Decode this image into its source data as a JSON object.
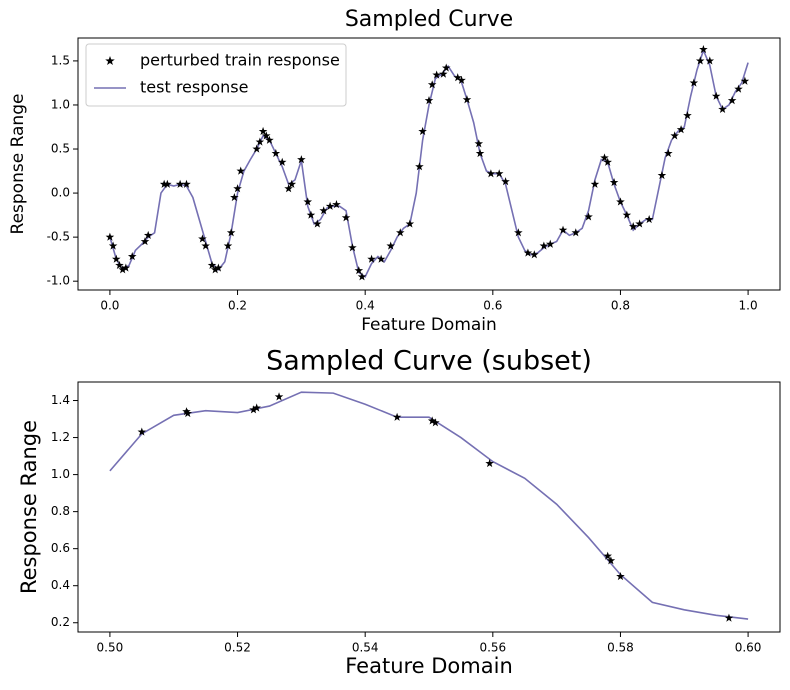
{
  "chart_data": [
    {
      "type": "line",
      "title": "Sampled Curve",
      "xlabel": "Feature Domain",
      "ylabel": "Response Range",
      "xlim": [
        -0.05,
        1.05
      ],
      "ylim": [
        -1.1,
        1.76
      ],
      "xticks": [
        {
          "value": 0,
          "label": "0.0"
        },
        0.2,
        0.4,
        0.6,
        0.8,
        {
          "value": 1,
          "label": "1.0"
        }
      ],
      "yticks": [
        {
          "value": -1,
          "label": "-1.0"
        },
        -0.5,
        {
          "value": 0,
          "label": "0.0"
        },
        0.5,
        {
          "value": 1,
          "label": "1.0"
        },
        1.5
      ],
      "legend": "upper left",
      "series": [
        {
          "name": "perturbed train response",
          "color": "#000000",
          "marker": "star",
          "x": [
            0.0,
            0.005,
            0.01,
            0.015,
            0.02,
            0.025,
            0.035,
            0.055,
            0.06,
            0.085,
            0.09,
            0.11,
            0.12,
            0.145,
            0.15,
            0.16,
            0.165,
            0.17,
            0.185,
            0.19,
            0.195,
            0.2,
            0.205,
            0.23,
            0.235,
            0.24,
            0.245,
            0.25,
            0.26,
            0.27,
            0.28,
            0.285,
            0.3,
            0.31,
            0.315,
            0.325,
            0.335,
            0.345,
            0.355,
            0.37,
            0.38,
            0.39,
            0.395,
            0.41,
            0.425,
            0.44,
            0.455,
            0.47,
            0.485,
            0.49,
            0.5,
            0.505,
            0.512,
            0.5225,
            0.527,
            0.545,
            0.551,
            0.5595,
            0.578,
            0.58,
            0.597,
            0.61,
            0.62,
            0.64,
            0.655,
            0.665,
            0.68,
            0.69,
            0.71,
            0.73,
            0.75,
            0.76,
            0.775,
            0.78,
            0.79,
            0.8,
            0.81,
            0.82,
            0.83,
            0.845,
            0.865,
            0.875,
            0.885,
            0.895,
            0.905,
            0.915,
            0.925,
            0.93,
            0.94,
            0.95,
            0.96,
            0.975,
            0.985,
            0.995
          ],
          "values": [
            -0.5,
            -0.6,
            -0.75,
            -0.82,
            -0.87,
            -0.85,
            -0.72,
            -0.55,
            -0.48,
            0.1,
            0.1,
            0.1,
            0.1,
            -0.52,
            -0.6,
            -0.82,
            -0.87,
            -0.85,
            -0.6,
            -0.45,
            -0.05,
            0.05,
            0.25,
            0.5,
            0.58,
            0.7,
            0.65,
            0.6,
            0.45,
            0.35,
            0.05,
            0.1,
            0.38,
            -0.1,
            -0.25,
            -0.35,
            -0.2,
            -0.15,
            -0.13,
            -0.28,
            -0.62,
            -0.88,
            -0.95,
            -0.75,
            -0.75,
            -0.6,
            -0.45,
            -0.35,
            0.3,
            0.7,
            1.05,
            1.23,
            1.34,
            1.35,
            1.42,
            1.31,
            1.28,
            1.06,
            0.56,
            0.45,
            0.22,
            0.22,
            0.13,
            -0.45,
            -0.68,
            -0.7,
            -0.6,
            -0.58,
            -0.42,
            -0.45,
            -0.27,
            0.1,
            0.4,
            0.35,
            0.12,
            -0.1,
            -0.25,
            -0.38,
            -0.35,
            -0.3,
            0.2,
            0.45,
            0.65,
            0.72,
            0.88,
            1.25,
            1.5,
            1.63,
            1.5,
            1.1,
            0.95,
            1.05,
            1.18,
            1.27
          ]
        },
        {
          "name": "test response",
          "color": "#7570b3",
          "marker": "line",
          "x": [
            0.0,
            0.01,
            0.02,
            0.03,
            0.04,
            0.05,
            0.06,
            0.07,
            0.08,
            0.09,
            0.1,
            0.11,
            0.12,
            0.13,
            0.14,
            0.15,
            0.16,
            0.17,
            0.18,
            0.19,
            0.2,
            0.21,
            0.22,
            0.23,
            0.24,
            0.25,
            0.26,
            0.27,
            0.28,
            0.29,
            0.3,
            0.31,
            0.32,
            0.33,
            0.34,
            0.35,
            0.36,
            0.37,
            0.38,
            0.39,
            0.4,
            0.41,
            0.42,
            0.43,
            0.44,
            0.45,
            0.46,
            0.47,
            0.48,
            0.49,
            0.5,
            0.51,
            0.52,
            0.53,
            0.54,
            0.55,
            0.56,
            0.57,
            0.58,
            0.59,
            0.6,
            0.61,
            0.62,
            0.63,
            0.64,
            0.65,
            0.66,
            0.67,
            0.68,
            0.69,
            0.7,
            0.71,
            0.72,
            0.73,
            0.74,
            0.75,
            0.76,
            0.77,
            0.78,
            0.79,
            0.8,
            0.81,
            0.82,
            0.83,
            0.84,
            0.85,
            0.86,
            0.87,
            0.88,
            0.89,
            0.9,
            0.91,
            0.92,
            0.93,
            0.94,
            0.95,
            0.96,
            0.97,
            0.98,
            0.99,
            1.0
          ],
          "values": [
            -0.5,
            -0.75,
            -0.87,
            -0.82,
            -0.65,
            -0.58,
            -0.5,
            -0.45,
            0.0,
            0.1,
            0.08,
            0.1,
            0.08,
            -0.05,
            -0.3,
            -0.55,
            -0.8,
            -0.87,
            -0.78,
            -0.45,
            0.0,
            0.25,
            0.38,
            0.5,
            0.65,
            0.6,
            0.45,
            0.3,
            0.1,
            0.15,
            0.37,
            -0.15,
            -0.35,
            -0.3,
            -0.17,
            -0.15,
            -0.15,
            -0.2,
            -0.6,
            -0.9,
            -0.95,
            -0.8,
            -0.72,
            -0.78,
            -0.65,
            -0.5,
            -0.4,
            -0.35,
            0.0,
            0.6,
            1.0,
            1.3,
            1.35,
            1.44,
            1.33,
            1.28,
            1.05,
            0.8,
            0.45,
            0.25,
            0.22,
            0.22,
            0.1,
            -0.2,
            -0.5,
            -0.65,
            -0.7,
            -0.68,
            -0.62,
            -0.58,
            -0.55,
            -0.42,
            -0.48,
            -0.45,
            -0.4,
            -0.2,
            0.15,
            0.38,
            0.35,
            0.1,
            -0.1,
            -0.25,
            -0.42,
            -0.35,
            -0.3,
            -0.3,
            0.05,
            0.4,
            0.6,
            0.7,
            0.75,
            1.1,
            1.4,
            1.62,
            1.45,
            1.1,
            0.95,
            1.0,
            1.15,
            1.25,
            1.48
          ]
        }
      ]
    },
    {
      "type": "line",
      "title": "Sampled Curve (subset)",
      "xlabel": "Feature Domain",
      "ylabel": "Response Range",
      "xlim": [
        0.495,
        0.605
      ],
      "ylim": [
        0.15,
        1.5
      ],
      "xticks": [
        {
          "value": 0.5,
          "label": "0.50"
        },
        0.52,
        0.54,
        0.56,
        0.58,
        {
          "value": 0.6,
          "label": "0.60"
        }
      ],
      "yticks": [
        0.2,
        0.4,
        0.6,
        0.8,
        {
          "value": 1,
          "label": "1.0"
        },
        1.2,
        1.4
      ],
      "series": [
        {
          "color": "#000000",
          "marker": "star",
          "x": [
            0.505,
            0.512,
            0.5122,
            0.5225,
            0.523,
            0.5265,
            0.545,
            0.5505,
            0.551,
            0.5595,
            0.578,
            0.5785,
            0.58,
            0.597
          ],
          "values": [
            1.23,
            1.34,
            1.33,
            1.35,
            1.36,
            1.42,
            1.31,
            1.29,
            1.28,
            1.06,
            0.56,
            0.535,
            0.45,
            0.225
          ]
        },
        {
          "color": "#7570b3",
          "marker": "line",
          "x": [
            0.5,
            0.505,
            0.51,
            0.515,
            0.52,
            0.525,
            0.53,
            0.535,
            0.54,
            0.545,
            0.55,
            0.555,
            0.56,
            0.565,
            0.57,
            0.575,
            0.58,
            0.585,
            0.59,
            0.595,
            0.6
          ],
          "values": [
            1.02,
            1.22,
            1.32,
            1.345,
            1.335,
            1.37,
            1.445,
            1.44,
            1.38,
            1.31,
            1.31,
            1.2,
            1.07,
            0.98,
            0.84,
            0.66,
            0.46,
            0.31,
            0.27,
            0.24,
            0.22
          ]
        }
      ]
    }
  ]
}
